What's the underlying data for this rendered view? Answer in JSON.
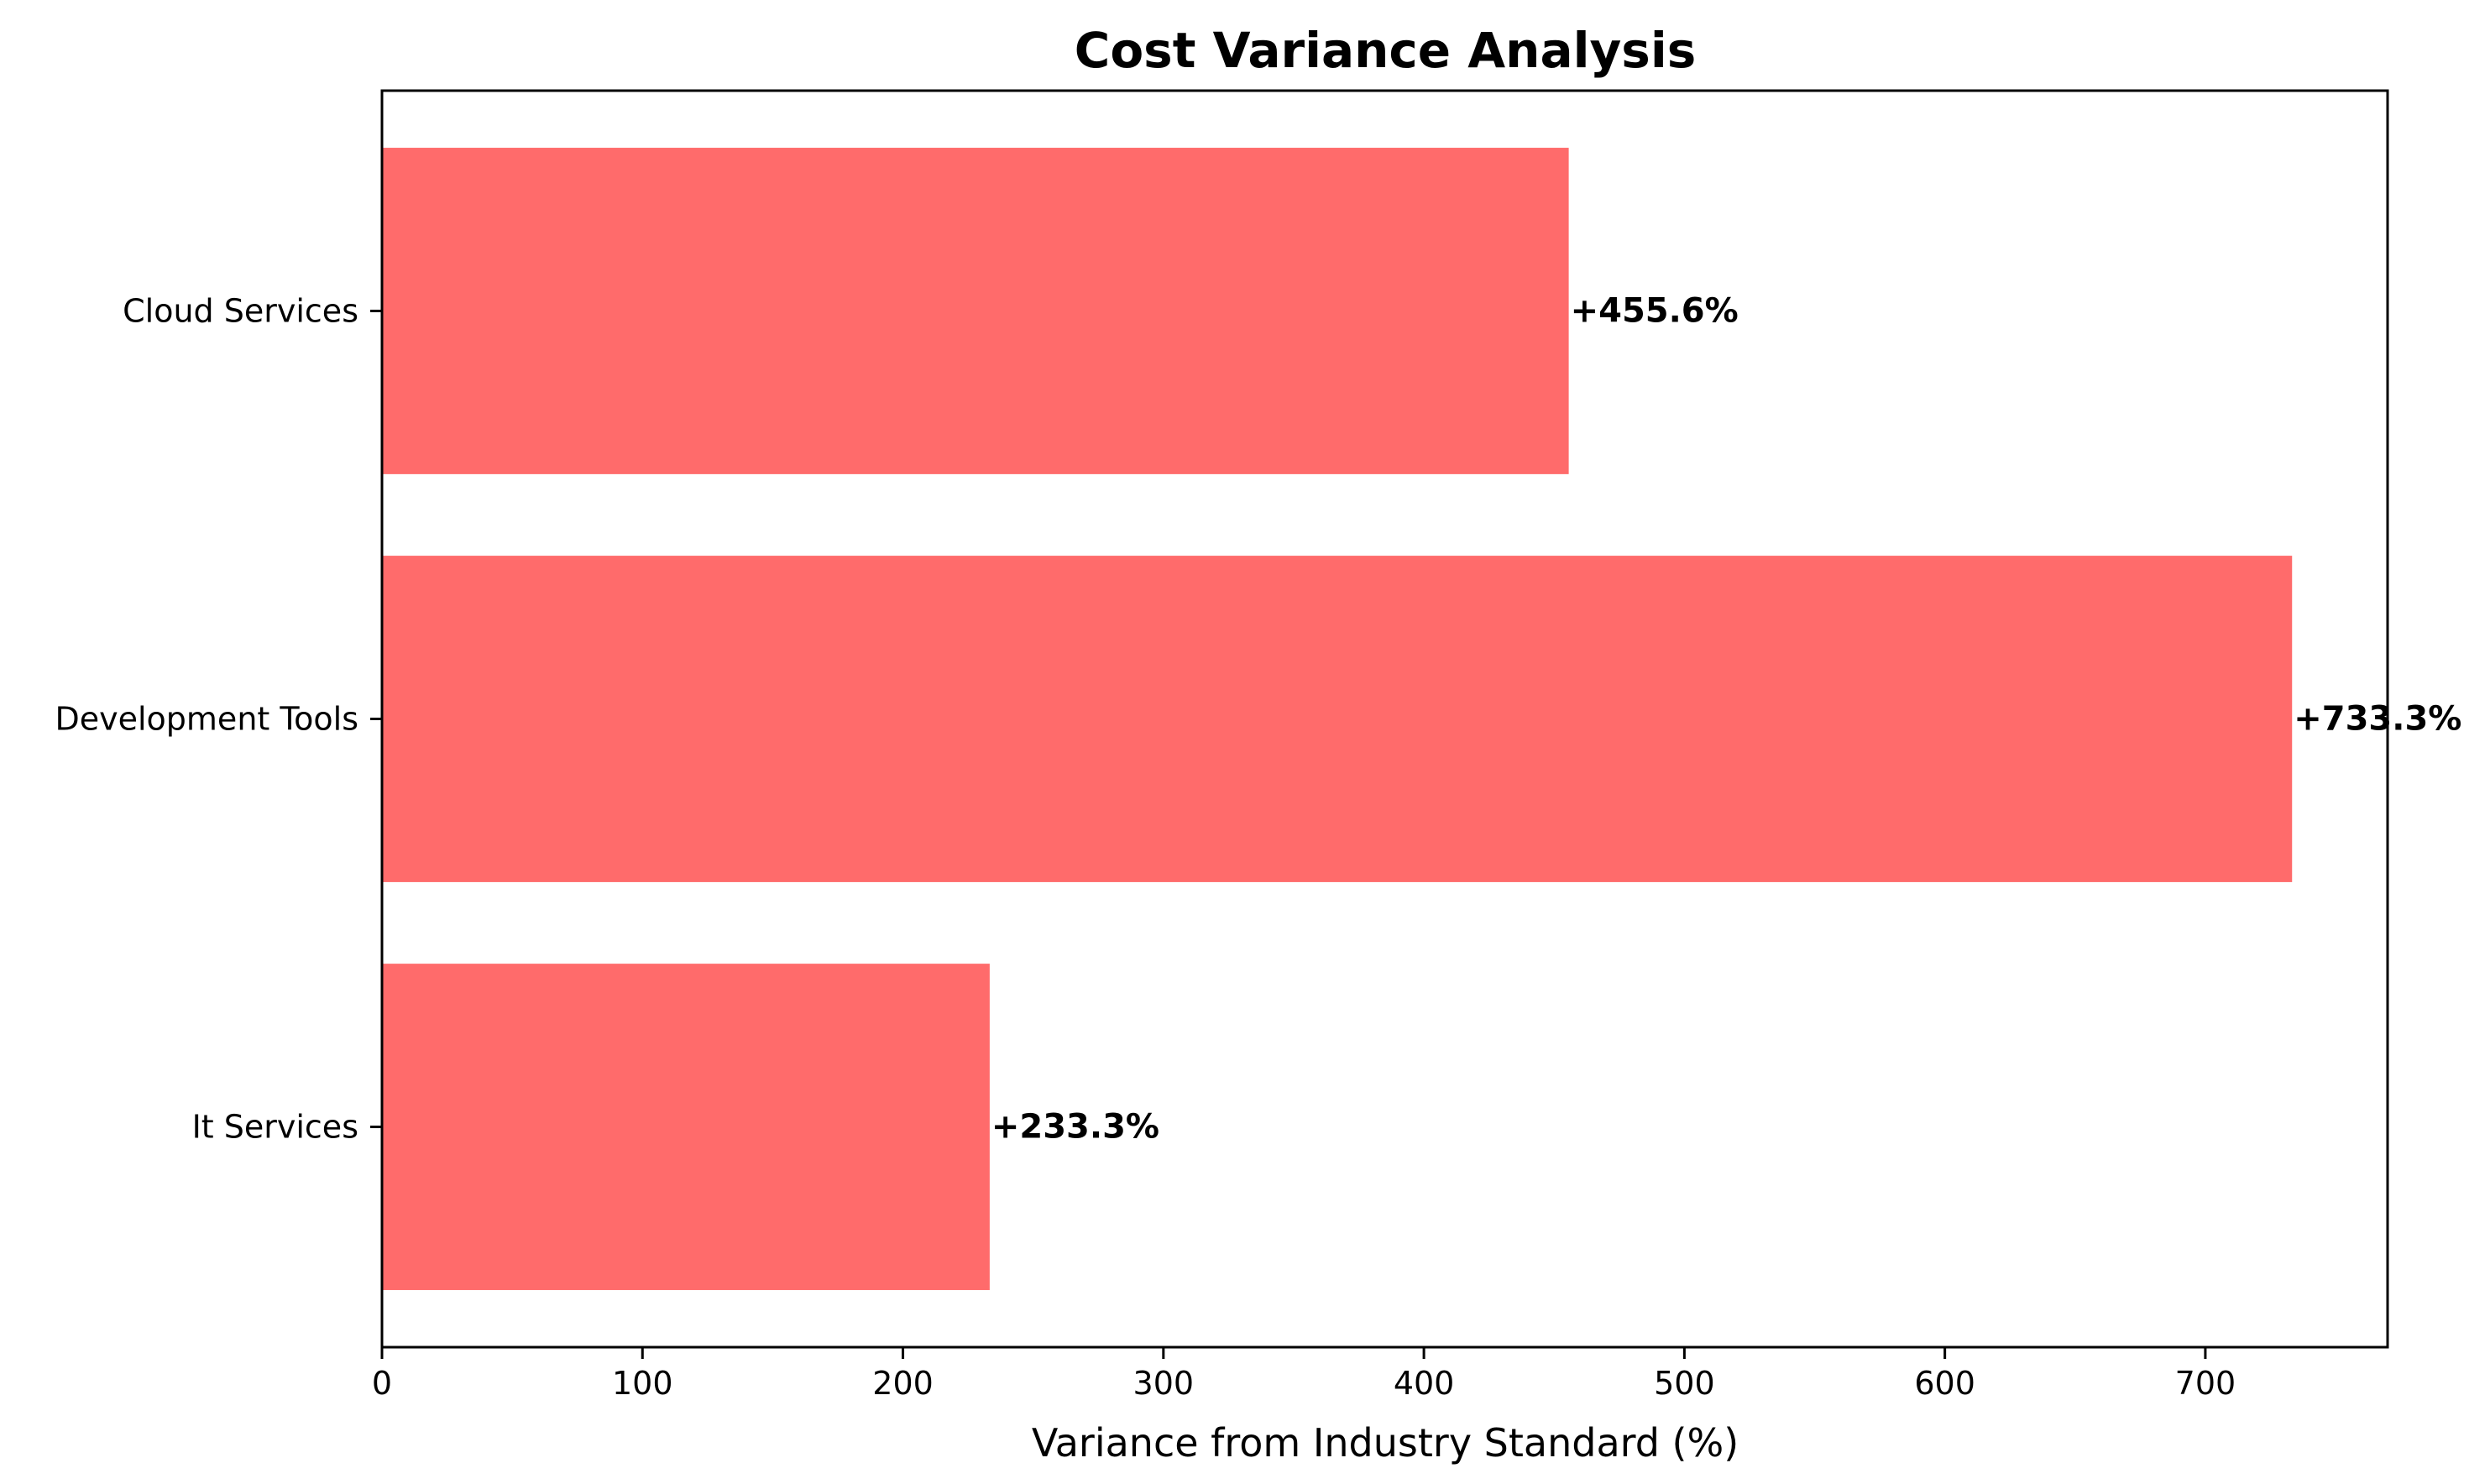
{
  "chart_data": {
    "type": "bar",
    "orientation": "horizontal",
    "title": "Cost Variance Analysis",
    "xlabel": "Variance from Industry Standard (%)",
    "ylabel": "",
    "categories": [
      "Cloud Services",
      "Development Tools",
      "It Services"
    ],
    "values": [
      455.6,
      733.3,
      233.3
    ],
    "data_labels": [
      "+455.6%",
      "+733.3%",
      "+233.3%"
    ],
    "xlim": [
      0,
      769.965
    ],
    "xticks": [
      0,
      100,
      200,
      300,
      400,
      500,
      600,
      700
    ],
    "bar_color": "#ff6b6b",
    "grid": false,
    "legend": "none"
  }
}
